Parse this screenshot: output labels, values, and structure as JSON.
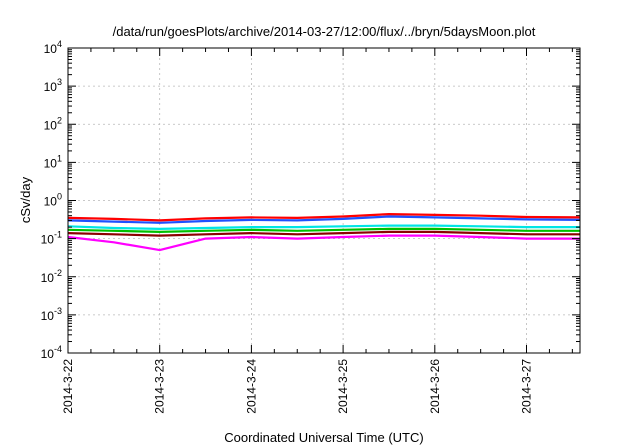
{
  "chart_data": {
    "type": "line",
    "title": "/data/run/goesPlots/archive/2014-03-27/12:00/flux/../bryn/5daysMoon.plot",
    "xlabel": "Coordinated Universal Time (UTC)",
    "ylabel": "cSv/day",
    "y_scale": "log",
    "ylim": [
      0.0001,
      10000
    ],
    "y_ticks": [
      {
        "base": "10",
        "exp": "-4",
        "value": 0.0001
      },
      {
        "base": "10",
        "exp": "-3",
        "value": 0.001
      },
      {
        "base": "10",
        "exp": "-2",
        "value": 0.01
      },
      {
        "base": "10",
        "exp": "-1",
        "value": 0.1
      },
      {
        "base": "10",
        "exp": "0",
        "value": 1
      },
      {
        "base": "10",
        "exp": "1",
        "value": 10
      },
      {
        "base": "10",
        "exp": "2",
        "value": 100
      },
      {
        "base": "10",
        "exp": "3",
        "value": 1000
      },
      {
        "base": "10",
        "exp": "4",
        "value": 10000
      }
    ],
    "xlim": [
      "2014-03-22",
      "2014-03-27T14:00"
    ],
    "x_ticks": [
      "2014-3-22",
      "2014-3-23",
      "2014-3-24",
      "2014-3-25",
      "2014-3-26",
      "2014-3-27"
    ],
    "grid": true,
    "series": [
      {
        "color": "#ff00ff",
        "x": [
          "2014-03-22T00:00",
          "2014-03-22T12:00",
          "2014-03-23T00:00",
          "2014-03-23T12:00",
          "2014-03-24T00:00",
          "2014-03-24T12:00",
          "2014-03-25T00:00",
          "2014-03-25T12:00",
          "2014-03-26T00:00",
          "2014-03-26T12:00",
          "2014-03-27T00:00",
          "2014-03-27T14:00"
        ],
        "y": [
          0.11,
          0.08,
          0.05,
          0.1,
          0.11,
          0.1,
          0.11,
          0.12,
          0.12,
          0.11,
          0.1,
          0.1
        ]
      },
      {
        "color": "#8b0000",
        "x": [
          "2014-03-22T00:00",
          "2014-03-22T12:00",
          "2014-03-23T00:00",
          "2014-03-23T12:00",
          "2014-03-24T00:00",
          "2014-03-24T12:00",
          "2014-03-25T00:00",
          "2014-03-25T12:00",
          "2014-03-26T00:00",
          "2014-03-26T12:00",
          "2014-03-27T00:00",
          "2014-03-27T14:00"
        ],
        "y": [
          0.14,
          0.13,
          0.12,
          0.13,
          0.14,
          0.13,
          0.14,
          0.15,
          0.15,
          0.14,
          0.13,
          0.13
        ]
      },
      {
        "color": "#00c000",
        "x": [
          "2014-03-22T00:00",
          "2014-03-22T12:00",
          "2014-03-23T00:00",
          "2014-03-23T12:00",
          "2014-03-24T00:00",
          "2014-03-24T12:00",
          "2014-03-25T00:00",
          "2014-03-25T12:00",
          "2014-03-26T00:00",
          "2014-03-26T12:00",
          "2014-03-27T00:00",
          "2014-03-27T14:00"
        ],
        "y": [
          0.17,
          0.16,
          0.15,
          0.16,
          0.17,
          0.16,
          0.17,
          0.18,
          0.18,
          0.17,
          0.16,
          0.16
        ]
      },
      {
        "color": "#00e5e5",
        "x": [
          "2014-03-22T00:00",
          "2014-03-22T12:00",
          "2014-03-23T00:00",
          "2014-03-23T12:00",
          "2014-03-24T00:00",
          "2014-03-24T12:00",
          "2014-03-25T00:00",
          "2014-03-25T12:00",
          "2014-03-26T00:00",
          "2014-03-26T12:00",
          "2014-03-27T00:00",
          "2014-03-27T14:00"
        ],
        "y": [
          0.21,
          0.19,
          0.18,
          0.19,
          0.2,
          0.2,
          0.21,
          0.22,
          0.22,
          0.21,
          0.2,
          0.2
        ]
      },
      {
        "color": "#ff0000",
        "x": [
          "2014-03-22T00:00",
          "2014-03-22T12:00",
          "2014-03-23T00:00",
          "2014-03-23T12:00",
          "2014-03-24T00:00",
          "2014-03-24T12:00",
          "2014-03-25T00:00",
          "2014-03-25T12:00",
          "2014-03-26T00:00",
          "2014-03-26T12:00",
          "2014-03-27T00:00",
          "2014-03-27T14:00"
        ],
        "y": [
          0.35,
          0.33,
          0.3,
          0.34,
          0.36,
          0.35,
          0.38,
          0.44,
          0.42,
          0.4,
          0.37,
          0.36
        ]
      },
      {
        "color": "#1e50ff",
        "x": [
          "2014-03-22T00:00",
          "2014-03-22T12:00",
          "2014-03-23T00:00",
          "2014-03-23T12:00",
          "2014-03-24T00:00",
          "2014-03-24T12:00",
          "2014-03-25T00:00",
          "2014-03-25T12:00",
          "2014-03-26T00:00",
          "2014-03-26T12:00",
          "2014-03-27T00:00",
          "2014-03-27T14:00"
        ],
        "y": [
          0.3,
          0.28,
          0.26,
          0.29,
          0.31,
          0.3,
          0.33,
          0.38,
          0.36,
          0.34,
          0.32,
          0.31
        ]
      }
    ]
  }
}
